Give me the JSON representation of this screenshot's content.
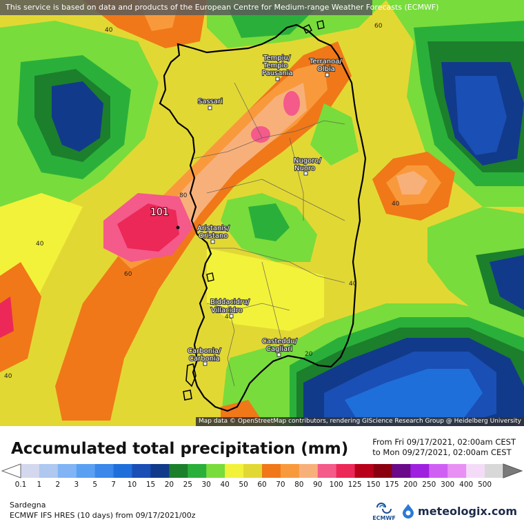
{
  "header": {
    "notice": "This service is based on data and products of the European Centre for Medium-range Weather Forecasts (ECMWF)"
  },
  "map": {
    "attribution": "Map data © OpenStreetMap contributors, rendering GIScience Research Group @ Heidelberg University",
    "max_value": "101",
    "cities": [
      {
        "line1": "Tempiu/",
        "line2": "Tempio",
        "line3": "Pausania"
      },
      {
        "line1": "Terranoa/",
        "line2": "Olbia"
      },
      {
        "line1": "Sassari"
      },
      {
        "line1": "Nugoro/",
        "line2": "Nuoro"
      },
      {
        "line1": "Aristanis/",
        "line2": "Oristano"
      },
      {
        "line1": "Biddacidru/",
        "line2": "Villacidro"
      },
      {
        "line1": "Casteddu/",
        "line2": "Cagliari"
      },
      {
        "line1": "Carbonia/",
        "line2": "Carbonia"
      }
    ],
    "contour_labels": [
      "40",
      "60",
      "40",
      "80",
      "40",
      "60",
      "40",
      "40",
      "40",
      "20",
      "40"
    ]
  },
  "legend": {
    "title": "Accumulated total precipitation (mm)",
    "from": "From Fri 09/17/2021, 02:00am CEST",
    "to": "to Mon 09/27/2021, 02:00am CEST",
    "scale": [
      {
        "label": "0.1",
        "color": "#d4d8ee"
      },
      {
        "label": "1",
        "color": "#aec8f0"
      },
      {
        "label": "2",
        "color": "#80b4f5"
      },
      {
        "label": "3",
        "color": "#5aa0f2"
      },
      {
        "label": "5",
        "color": "#3a88ea"
      },
      {
        "label": "7",
        "color": "#1f6fdb"
      },
      {
        "label": "10",
        "color": "#1a4fb5"
      },
      {
        "label": "15",
        "color": "#123a8a"
      },
      {
        "label": "20",
        "color": "#1c7f2c"
      },
      {
        "label": "25",
        "color": "#2ab03a"
      },
      {
        "label": "30",
        "color": "#78dc3c"
      },
      {
        "label": "40",
        "color": "#f2f23a"
      },
      {
        "label": "50",
        "color": "#e2d834"
      },
      {
        "label": "60",
        "color": "#f07818"
      },
      {
        "label": "70",
        "color": "#f89a3c"
      },
      {
        "label": "80",
        "color": "#f8b07a"
      },
      {
        "label": "90",
        "color": "#f45a8a"
      },
      {
        "label": "100",
        "color": "#ec2858"
      },
      {
        "label": "125",
        "color": "#b8001a"
      },
      {
        "label": "150",
        "color": "#8a0010"
      },
      {
        "label": "175",
        "color": "#6a0a8a"
      },
      {
        "label": "200",
        "color": "#a020e0"
      },
      {
        "label": "250",
        "color": "#d060f4"
      },
      {
        "label": "300",
        "color": "#e890f4"
      },
      {
        "label": "400",
        "color": "#f4dcf8"
      },
      {
        "label": "500",
        "color": "#d8d8d8"
      }
    ],
    "region": "Sardegna",
    "model": "ECMWF IFS HRES (10 days) from 09/17/2021/00z",
    "ecmwf_logo_text": "ECMWF",
    "brand": "meteologix.com"
  }
}
